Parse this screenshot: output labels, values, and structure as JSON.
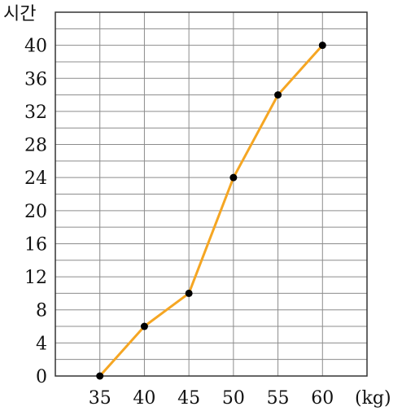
{
  "chart_data": {
    "type": "line",
    "title": "",
    "ylabel": "시간",
    "xlabel": "(kg)",
    "x": [
      35,
      40,
      45,
      50,
      55,
      60
    ],
    "x_ticks": [
      "35",
      "40",
      "45",
      "50",
      "55",
      "60"
    ],
    "series": [
      {
        "values": [
          0,
          6,
          10,
          24,
          34,
          40
        ]
      }
    ],
    "xlim": [
      30,
      65
    ],
    "ylim": [
      0,
      44
    ],
    "y_ticks": [
      0,
      4,
      8,
      12,
      16,
      20,
      24,
      28,
      32,
      36,
      40
    ],
    "grid": true,
    "line_color": "#f5a623",
    "point_color": "#000000"
  }
}
